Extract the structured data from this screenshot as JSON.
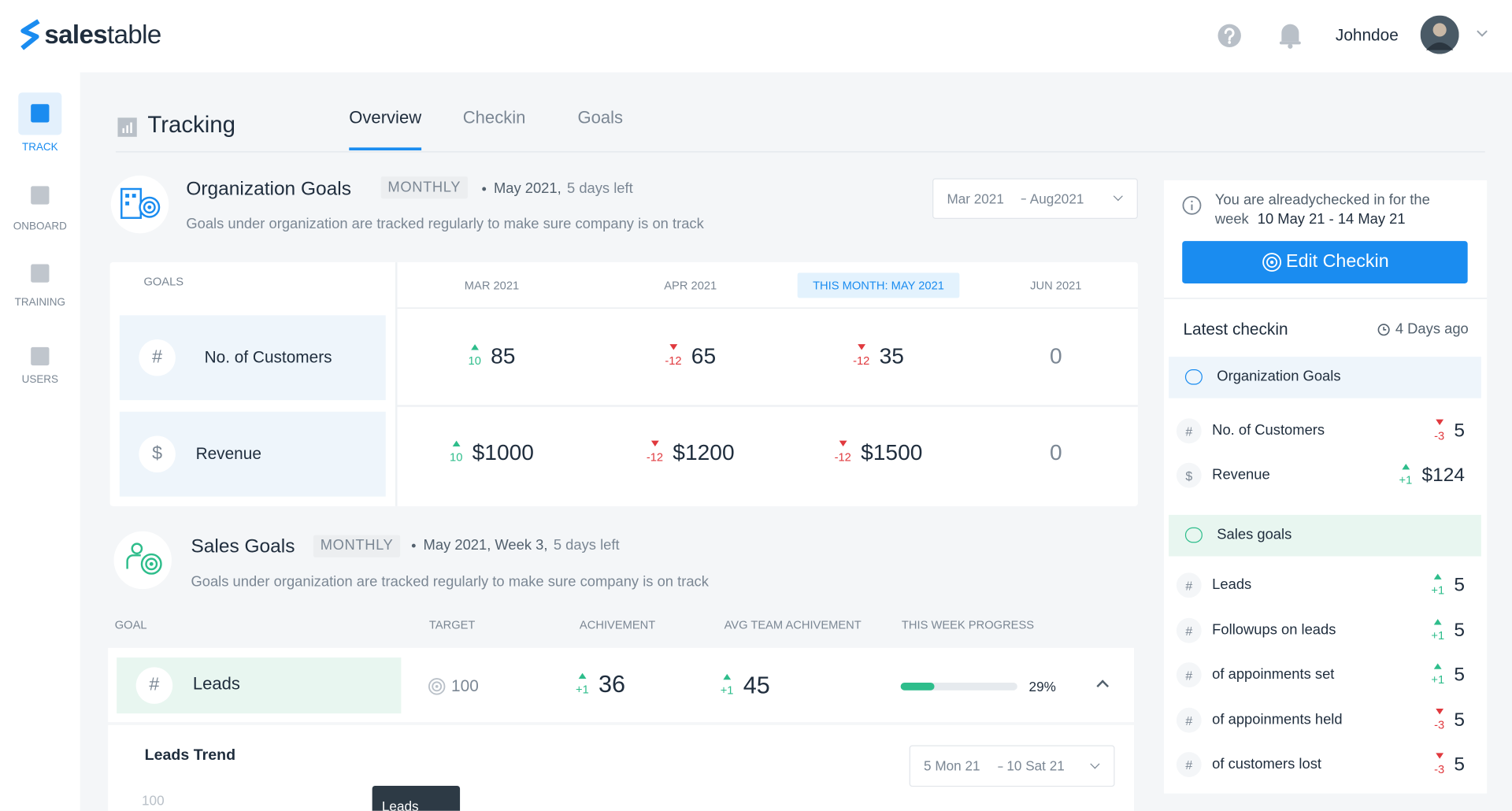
{
  "header": {
    "brand_bold": "sales",
    "brand_regular": "table",
    "user": "Johndoe"
  },
  "sidebar": [
    {
      "label": "TRACK",
      "active": true
    },
    {
      "label": "ONBOARD",
      "active": false
    },
    {
      "label": "TRAINING",
      "active": false
    },
    {
      "label": "USERS",
      "active": false
    }
  ],
  "page": {
    "title": "Tracking",
    "tabs": [
      "Overview",
      "Checkin",
      "Goals"
    ],
    "active_tab": 0
  },
  "org_goals": {
    "title": "Organization Goals",
    "period": "MONTHLY",
    "date": "May 2021,",
    "days_left": "5 days left",
    "description": "Goals under organization are tracked regularly to make sure company is on track",
    "range_start": "Mar 2021",
    "range_end": "Aug2021",
    "goals_header": "GOALS",
    "months": [
      "MAR 2021",
      "APR 2021",
      "THIS MONTH: MAY 2021",
      "JUN 2021"
    ],
    "current_month": 2,
    "rows": [
      {
        "icon": "#",
        "name": "No. of Customers",
        "cells": [
          {
            "delta": "10",
            "dir": "up",
            "value": "85"
          },
          {
            "delta": "-12",
            "dir": "down",
            "value": "65"
          },
          {
            "delta": "-12",
            "dir": "down",
            "value": "35"
          },
          {
            "value": "0"
          }
        ]
      },
      {
        "icon": "$",
        "name": "Revenue",
        "cells": [
          {
            "delta": "10",
            "dir": "up",
            "value": "$1000"
          },
          {
            "delta": "-12",
            "dir": "down",
            "value": "$1200"
          },
          {
            "delta": "-12",
            "dir": "down",
            "value": "$1500"
          },
          {
            "value": "0"
          }
        ]
      }
    ]
  },
  "sales_goals": {
    "title": "Sales Goals",
    "period": "MONTHLY",
    "date": "May 2021, Week 3,",
    "days_left": "5 days left",
    "description": "Goals under organization are tracked regularly to make sure company is on track",
    "columns": [
      "GOAL",
      "TARGET",
      "ACHIVEMENT",
      "AVG TEAM ACHIVEMENT",
      "THIS WEEK PROGRESS"
    ],
    "row": {
      "icon": "#",
      "name": "Leads",
      "target": "100",
      "achievement": {
        "delta": "+1",
        "dir": "up",
        "value": "36"
      },
      "average": {
        "delta": "+1",
        "dir": "up",
        "value": "45"
      },
      "progress": 29,
      "progress_label": "29%"
    },
    "trend": {
      "title": "Leads Trend",
      "range_start": "5 Mon 21",
      "range_end": "10 Sat 21",
      "ytick": "100",
      "tooltip": "Leads"
    }
  },
  "checkin": {
    "notice": "You are  alreadychecked in for the",
    "week_label": "week",
    "week": "10 May 21 - 14 May 21",
    "button": "Edit Checkin",
    "latest": "Latest checkin",
    "ago": "4 Days ago",
    "groups": [
      {
        "title": "Organization Goals",
        "color": "#eef5fb",
        "items": [
          {
            "icon": "#",
            "name": "No. of Customers",
            "delta": "-3",
            "dir": "down",
            "value": "5"
          },
          {
            "icon": "$",
            "name": "Revenue",
            "delta": "+1",
            "dir": "up",
            "value": "$124"
          }
        ]
      },
      {
        "title": "Sales goals",
        "color": "#e8f6f0",
        "items": [
          {
            "icon": "#",
            "name": "Leads",
            "delta": "+1",
            "dir": "up",
            "value": "5"
          },
          {
            "icon": "#",
            "name": "Followups on leads",
            "delta": "+1",
            "dir": "up",
            "value": "5"
          },
          {
            "icon": "#",
            "name": "of appoinments set",
            "delta": "+1",
            "dir": "up",
            "value": "5"
          },
          {
            "icon": "#",
            "name": "of appoinments held",
            "delta": "-3",
            "dir": "down",
            "value": "5"
          },
          {
            "icon": "#",
            "name": "of customers lost",
            "delta": "-3",
            "dir": "down",
            "value": "5"
          }
        ]
      }
    ]
  }
}
